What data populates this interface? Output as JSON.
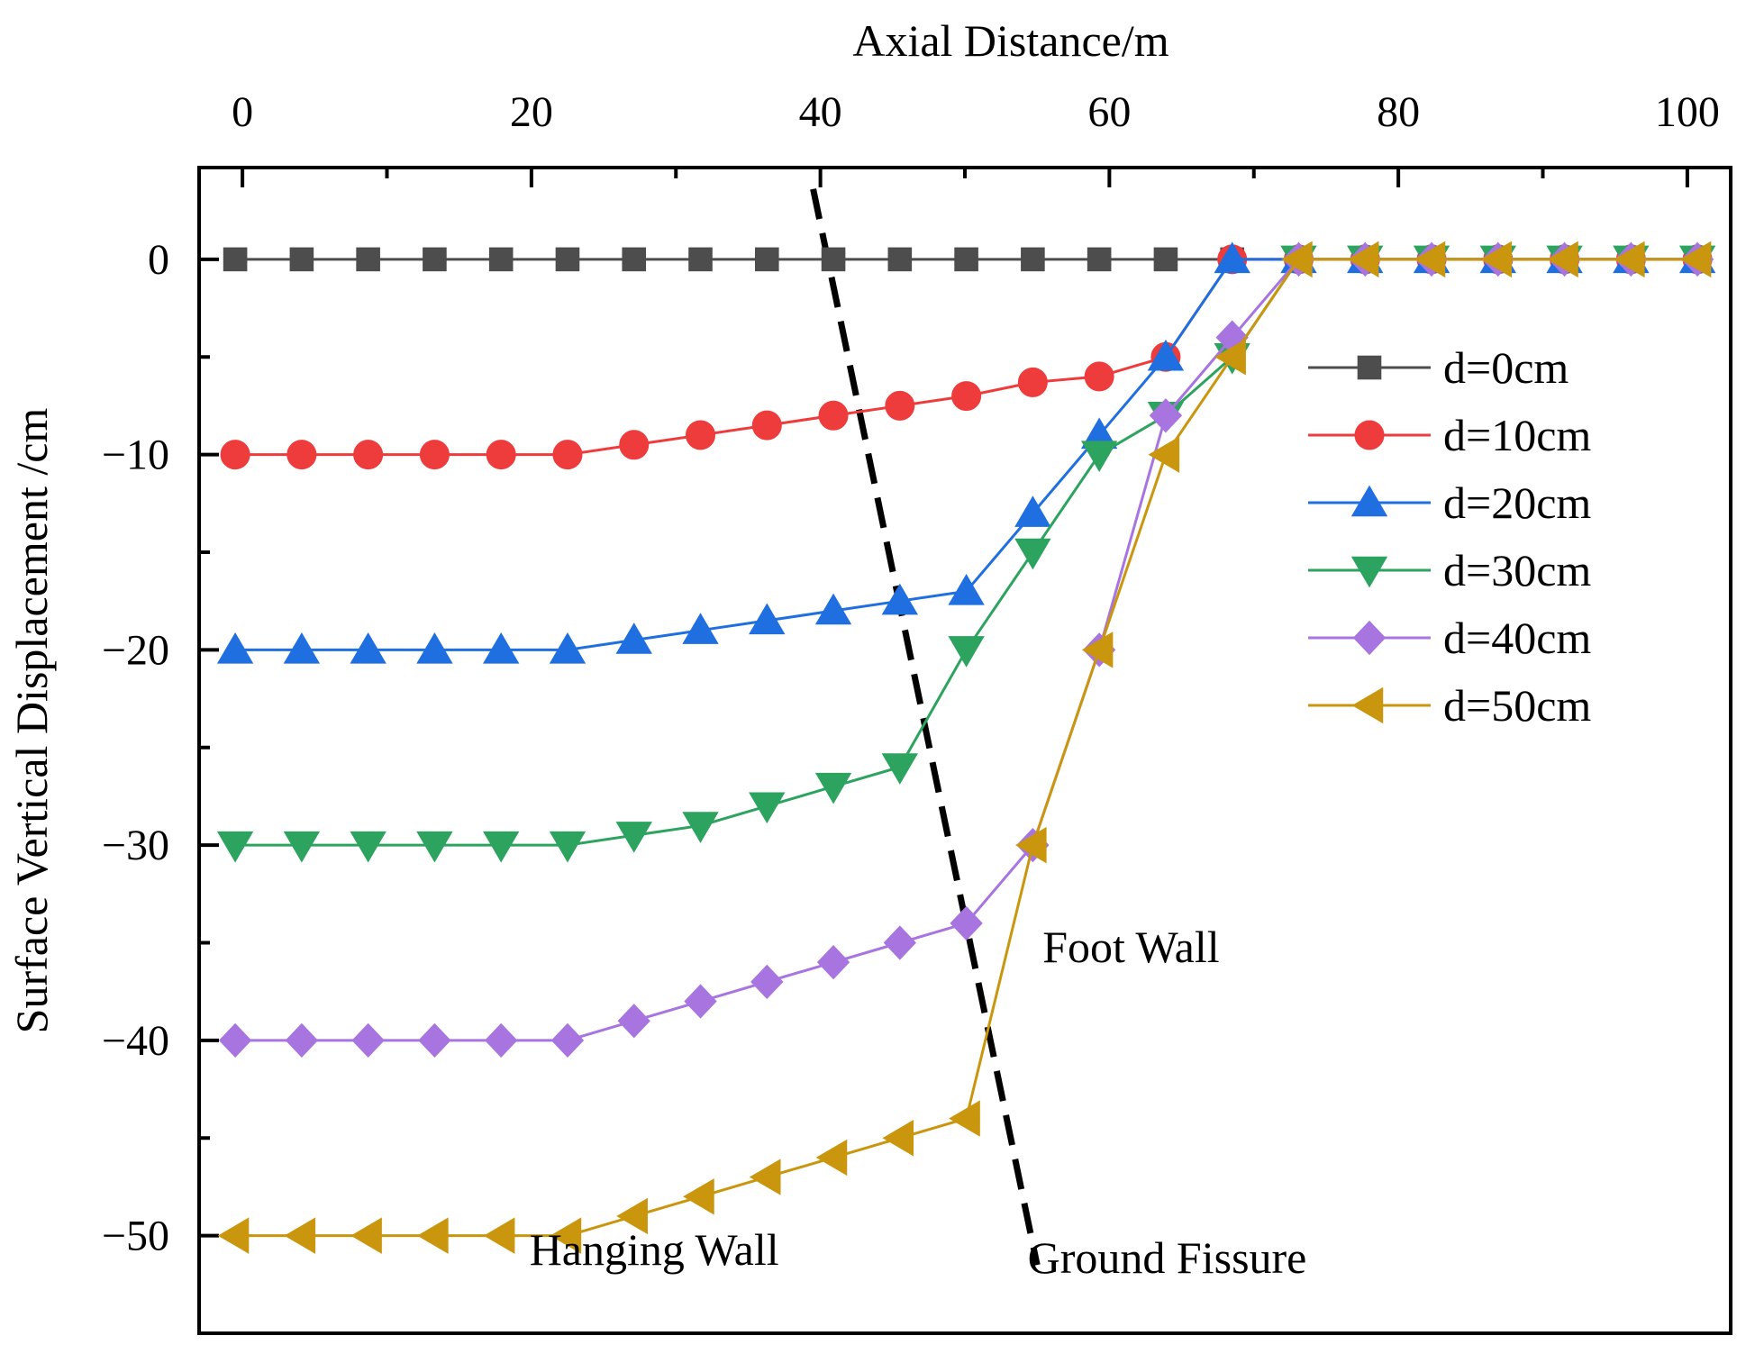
{
  "chart_data": {
    "type": "line",
    "xlabel": "Axial Distance/m",
    "ylabel": "Surface Vertical Displacement /cm",
    "xlim": [
      -3,
      103
    ],
    "ylim": [
      -55,
      4.7
    ],
    "xticks": [
      0,
      20,
      40,
      60,
      80,
      100
    ],
    "yticks": [
      0,
      -10,
      -20,
      -30,
      -40,
      -50
    ],
    "x_axis_position": "top",
    "grid": false,
    "legend_position": "right",
    "x": [
      -0.5,
      4.1,
      8.7,
      13.3,
      17.9,
      22.5,
      27.1,
      31.7,
      36.3,
      40.9,
      45.5,
      50.1,
      54.7,
      59.3,
      63.9,
      68.5,
      73.1,
      77.7,
      82.3,
      86.9,
      91.5,
      96.1,
      100.7
    ],
    "series": [
      {
        "name": "d=0cm",
        "marker": "square",
        "color": "#4d4d4d",
        "values": [
          0,
          0,
          0,
          0,
          0,
          0,
          0,
          0,
          0,
          0,
          0,
          0,
          0,
          0,
          0,
          0,
          0,
          0,
          0,
          0,
          0,
          0,
          0
        ]
      },
      {
        "name": "d=10cm",
        "marker": "circle",
        "color": "#ee3b3b",
        "values": [
          -10,
          -10,
          -10,
          -10,
          -10,
          -10,
          -9.5,
          -9,
          -8.5,
          -8,
          -7.5,
          -7,
          -6.3,
          -6,
          -5,
          0,
          0,
          0,
          0,
          0,
          0,
          0,
          0
        ]
      },
      {
        "name": "d=20cm",
        "marker": "triangle-up",
        "color": "#1f6fe0",
        "values": [
          -20,
          -20,
          -20,
          -20,
          -20,
          -20,
          -19.5,
          -19,
          -18.5,
          -18,
          -17.5,
          -17,
          -13,
          -9,
          -5,
          0,
          0,
          0,
          0,
          0,
          0,
          0,
          0
        ]
      },
      {
        "name": "d=30cm",
        "marker": "triangle-down",
        "color": "#2ca35e",
        "values": [
          -30,
          -30,
          -30,
          -30,
          -30,
          -30,
          -29.5,
          -29,
          -28,
          -27,
          -26,
          -20,
          -15,
          -10,
          -8,
          -5,
          0,
          0,
          0,
          0,
          0,
          0,
          0
        ]
      },
      {
        "name": "d=40cm",
        "marker": "diamond",
        "color": "#a774e0",
        "values": [
          -40,
          -40,
          -40,
          -40,
          -40,
          -40,
          -39,
          -38,
          -37,
          -36,
          -35,
          -34,
          -30,
          -20,
          -8,
          -4,
          0,
          0,
          0,
          0,
          0,
          0,
          0
        ]
      },
      {
        "name": "d=50cm",
        "marker": "triangle-left",
        "color": "#c9960e",
        "values": [
          -50,
          -50,
          -50,
          -50,
          -50,
          -50,
          -49,
          -48,
          -47,
          -46,
          -45,
          -44,
          -30,
          -20,
          -10,
          -5,
          0,
          0,
          0,
          0,
          0,
          0,
          0
        ]
      }
    ],
    "fissure_line": {
      "style": "dashed",
      "color": "#000000",
      "points": [
        [
          39.5,
          3.6
        ],
        [
          55,
          -51.5
        ]
      ]
    },
    "annotations": [
      {
        "text": "Foot Wall",
        "x": 61.5,
        "y": -36
      },
      {
        "text": "Hanging Wall",
        "x": 28.5,
        "y": -51.5
      },
      {
        "text": "Ground Fissure",
        "x": 64,
        "y": -51.9
      }
    ]
  }
}
